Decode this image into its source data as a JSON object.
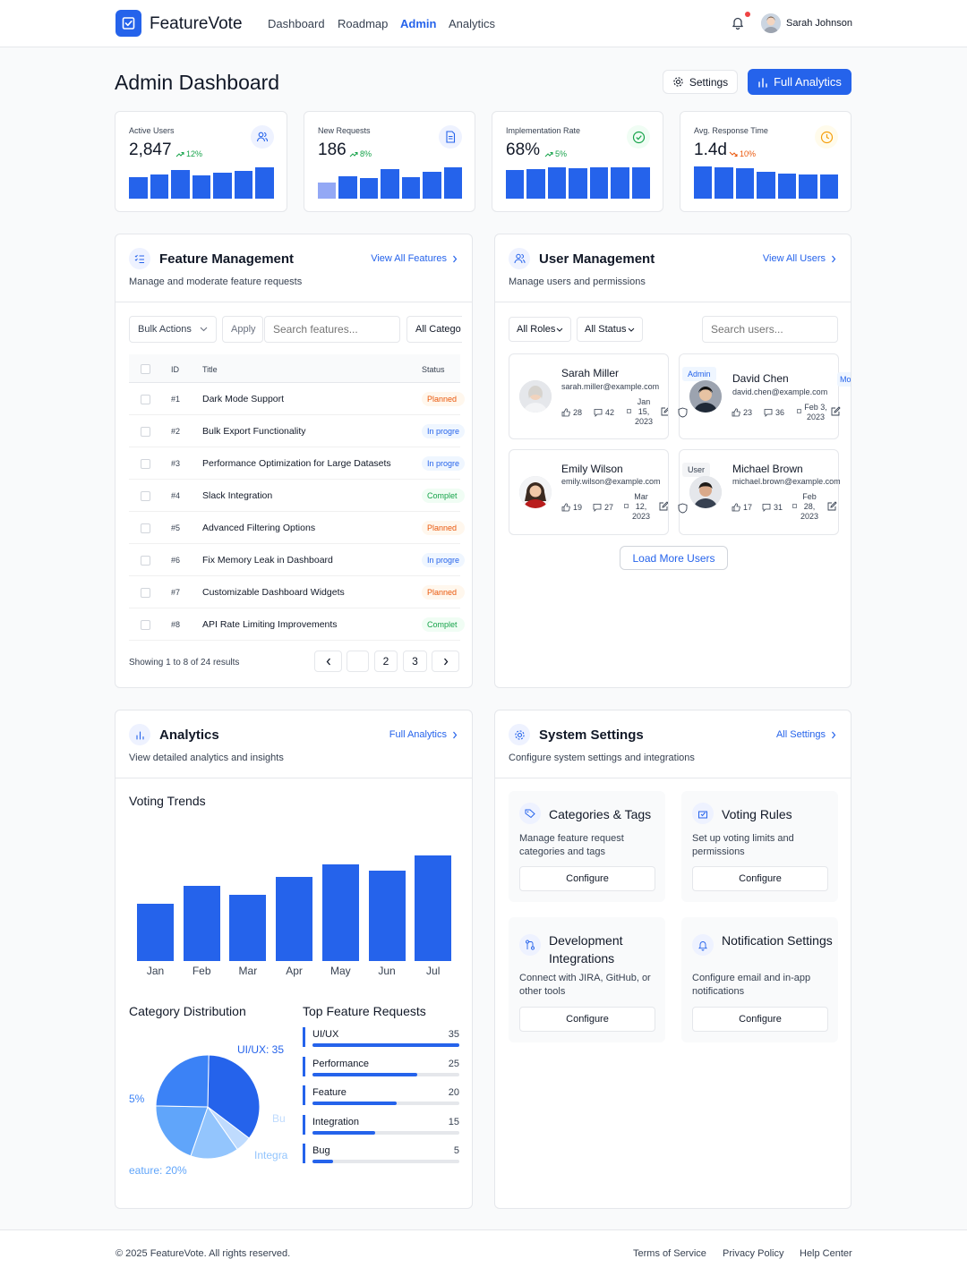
{
  "header": {
    "app_name": "FeatureVote",
    "nav": [
      "Dashboard",
      "Roadmap",
      "Admin",
      "Analytics"
    ],
    "active_nav": "Admin",
    "user_name": "Sarah Johnson"
  },
  "page": {
    "title": "Admin Dashboard",
    "settings_label": "Settings",
    "full_analytics_label": "Full Analytics"
  },
  "stats": [
    {
      "label": "Active Users",
      "value": "2,847",
      "change": "12%",
      "trend": "up",
      "icon": "users-icon",
      "bars": [
        0.62,
        0.72,
        0.83,
        0.68,
        0.76,
        0.82,
        0.93
      ]
    },
    {
      "label": "New Requests",
      "value": "186",
      "change": "8%",
      "trend": "up",
      "icon": "document-icon",
      "bars": [
        0.47,
        0.67,
        0.6,
        0.87,
        0.62,
        0.8,
        0.93
      ]
    },
    {
      "label": "Implementation Rate",
      "value": "68%",
      "change": "5%",
      "trend": "up",
      "icon": "check-circle-icon",
      "bars": [
        0.83,
        0.88,
        0.92,
        0.9,
        0.93,
        0.91,
        0.93
      ]
    },
    {
      "label": "Avg. Response Time",
      "value": "1.4d",
      "change": "10%",
      "trend": "down",
      "icon": "clock-icon",
      "bars": [
        0.95,
        0.92,
        0.9,
        0.78,
        0.75,
        0.7,
        0.72
      ]
    }
  ],
  "feature_management": {
    "title": "Feature Management",
    "subtitle": "Manage and moderate feature requests",
    "link": "View All Features",
    "bulk_actions": "Bulk Actions",
    "apply": "Apply",
    "search_placeholder": "Search features...",
    "category_filter": "All Catego",
    "columns": {
      "id": "ID",
      "title": "Title",
      "status": "Status"
    },
    "rows": [
      {
        "id": "#1",
        "title": "Dark Mode Support",
        "status": "Planned",
        "kind": "planned"
      },
      {
        "id": "#2",
        "title": "Bulk Export Functionality",
        "status": "In progre",
        "kind": "progress"
      },
      {
        "id": "#3",
        "title": "Performance Optimization for Large Datasets",
        "status": "In progre",
        "kind": "progress"
      },
      {
        "id": "#4",
        "title": "Slack Integration",
        "status": "Complet",
        "kind": "complete"
      },
      {
        "id": "#5",
        "title": "Advanced Filtering Options",
        "status": "Planned",
        "kind": "planned"
      },
      {
        "id": "#6",
        "title": "Fix Memory Leak in Dashboard",
        "status": "In progre",
        "kind": "progress"
      },
      {
        "id": "#7",
        "title": "Customizable Dashboard Widgets",
        "status": "Planned",
        "kind": "planned"
      },
      {
        "id": "#8",
        "title": "API Rate Limiting Improvements",
        "status": "Complet",
        "kind": "complete"
      }
    ],
    "results_text": "Showing 1 to 8 of 24 results",
    "pages": [
      "",
      "2",
      "3"
    ]
  },
  "user_management": {
    "title": "User Management",
    "subtitle": "Manage users and permissions",
    "link": "View All Users",
    "roles_filter": "All Roles",
    "status_filter": "All Status",
    "search_placeholder": "Search users...",
    "load_more": "Load More Users",
    "users": [
      {
        "name": "Sarah Miller",
        "email": "sarah.miller@example.com",
        "role": "",
        "votes": "28",
        "comments": "42",
        "date": [
          "Jan",
          "15,",
          "2023"
        ]
      },
      {
        "name": "David Chen",
        "email": "david.chen@example.com",
        "role": "Admin",
        "role_right": "Mo",
        "votes": "23",
        "comments": "36",
        "date": [
          "Feb 3,",
          "2023"
        ]
      },
      {
        "name": "Emily Wilson",
        "email": "emily.wilson@example.com",
        "role": "",
        "votes": "19",
        "comments": "27",
        "date": [
          "Mar",
          "12,",
          "2023"
        ]
      },
      {
        "name": "Michael Brown",
        "email": "michael.brown@example.com",
        "role": "User",
        "votes": "17",
        "comments": "31",
        "date": [
          "Feb",
          "28,",
          "2023"
        ]
      }
    ]
  },
  "analytics": {
    "title": "Analytics",
    "subtitle": "View detailed analytics and insights",
    "link": "Full Analytics",
    "voting_title": "Voting Trends",
    "category_title": "Category Distribution",
    "top_title": "Top Feature Requests",
    "pie_labels": {
      "uiux": "UI/UX: 35",
      "left": "5%",
      "bug": "Bu",
      "integration": "Integra",
      "feature": "eature: 20%"
    },
    "top_requests": [
      {
        "name": "UI/UX",
        "value": "35"
      },
      {
        "name": "Performance",
        "value": "25"
      },
      {
        "name": "Feature",
        "value": "20"
      },
      {
        "name": "Integration",
        "value": "15"
      },
      {
        "name": "Bug",
        "value": "5"
      }
    ]
  },
  "chart_data": [
    {
      "type": "bar",
      "title": "Voting Trends",
      "categories": [
        "Jan",
        "Feb",
        "Mar",
        "Apr",
        "May",
        "Jun",
        "Jul"
      ],
      "values": [
        65,
        85,
        75,
        96,
        110,
        103,
        120
      ],
      "ylim": [
        0,
        120
      ],
      "color": "#2563eb"
    },
    {
      "type": "pie",
      "title": "Category Distribution",
      "categories": [
        "UI/UX",
        "Performance",
        "Feature",
        "Integration",
        "Bug"
      ],
      "values": [
        35,
        25,
        20,
        15,
        5
      ],
      "colors": [
        "#2563eb",
        "#3b82f6",
        "#60a5fa",
        "#93c5fd",
        "#bfdbfe"
      ]
    },
    {
      "type": "bar",
      "title": "Top Feature Requests",
      "categories": [
        "UI/UX",
        "Performance",
        "Feature",
        "Integration",
        "Bug"
      ],
      "values": [
        35,
        25,
        20,
        15,
        5
      ],
      "xlim": [
        0,
        35
      ]
    }
  ],
  "system_settings": {
    "title": "System Settings",
    "subtitle": "Configure system settings and integrations",
    "link": "All Settings",
    "cards": [
      {
        "title": "Categories & Tags",
        "desc": "Manage feature request categories and tags",
        "button": "Configure",
        "icon": "tag-icon"
      },
      {
        "title": "Voting Rules",
        "desc": "Set up voting limits and permissions",
        "button": "Configure",
        "icon": "ballot-icon"
      },
      {
        "title": "Development Integrations",
        "desc": "Connect with JIRA, GitHub, or other tools",
        "button": "Configure",
        "icon": "git-icon"
      },
      {
        "title": "Notification Settings",
        "desc": "Configure email and in-app notifications",
        "button": "Configure",
        "icon": "bell-icon"
      }
    ]
  },
  "footer": {
    "copyright": "© 2025 FeatureVote. All rights reserved.",
    "links": [
      "Terms of Service",
      "Privacy Policy",
      "Help Center"
    ]
  },
  "colors": {
    "primary": "#2563eb",
    "success": "#16a34a",
    "warning": "#ea580c",
    "danger": "#ef4444"
  }
}
